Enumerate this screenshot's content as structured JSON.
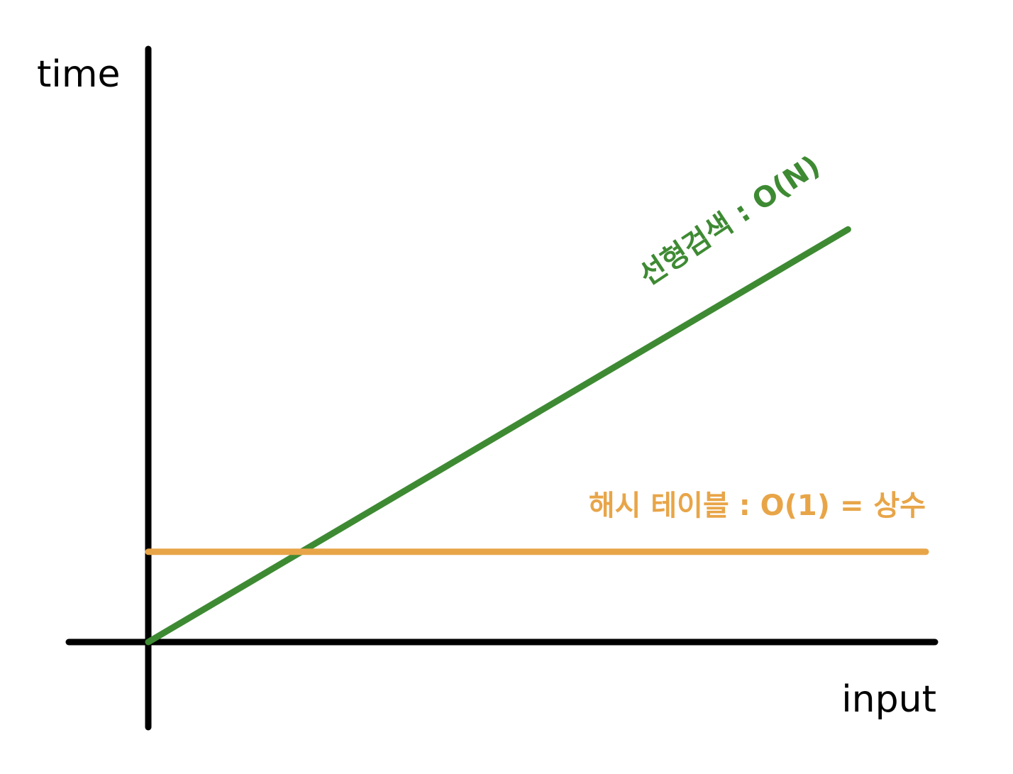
{
  "chart_data": {
    "type": "line",
    "ylabel": "time",
    "xlabel": "input",
    "xlim": [
      0,
      1
    ],
    "ylim": [
      0,
      1
    ],
    "grid": false,
    "legend": "none",
    "series": [
      {
        "name": "선형검색 : O(N)",
        "color": "#3e8a33",
        "x": [
          0,
          0.9
        ],
        "y": [
          0,
          0.8
        ]
      },
      {
        "name": "해시 테이블 : O(1) = 상수",
        "color": "#e8a548",
        "x": [
          0,
          1
        ],
        "y": [
          0.175,
          0.175
        ]
      }
    ]
  }
}
